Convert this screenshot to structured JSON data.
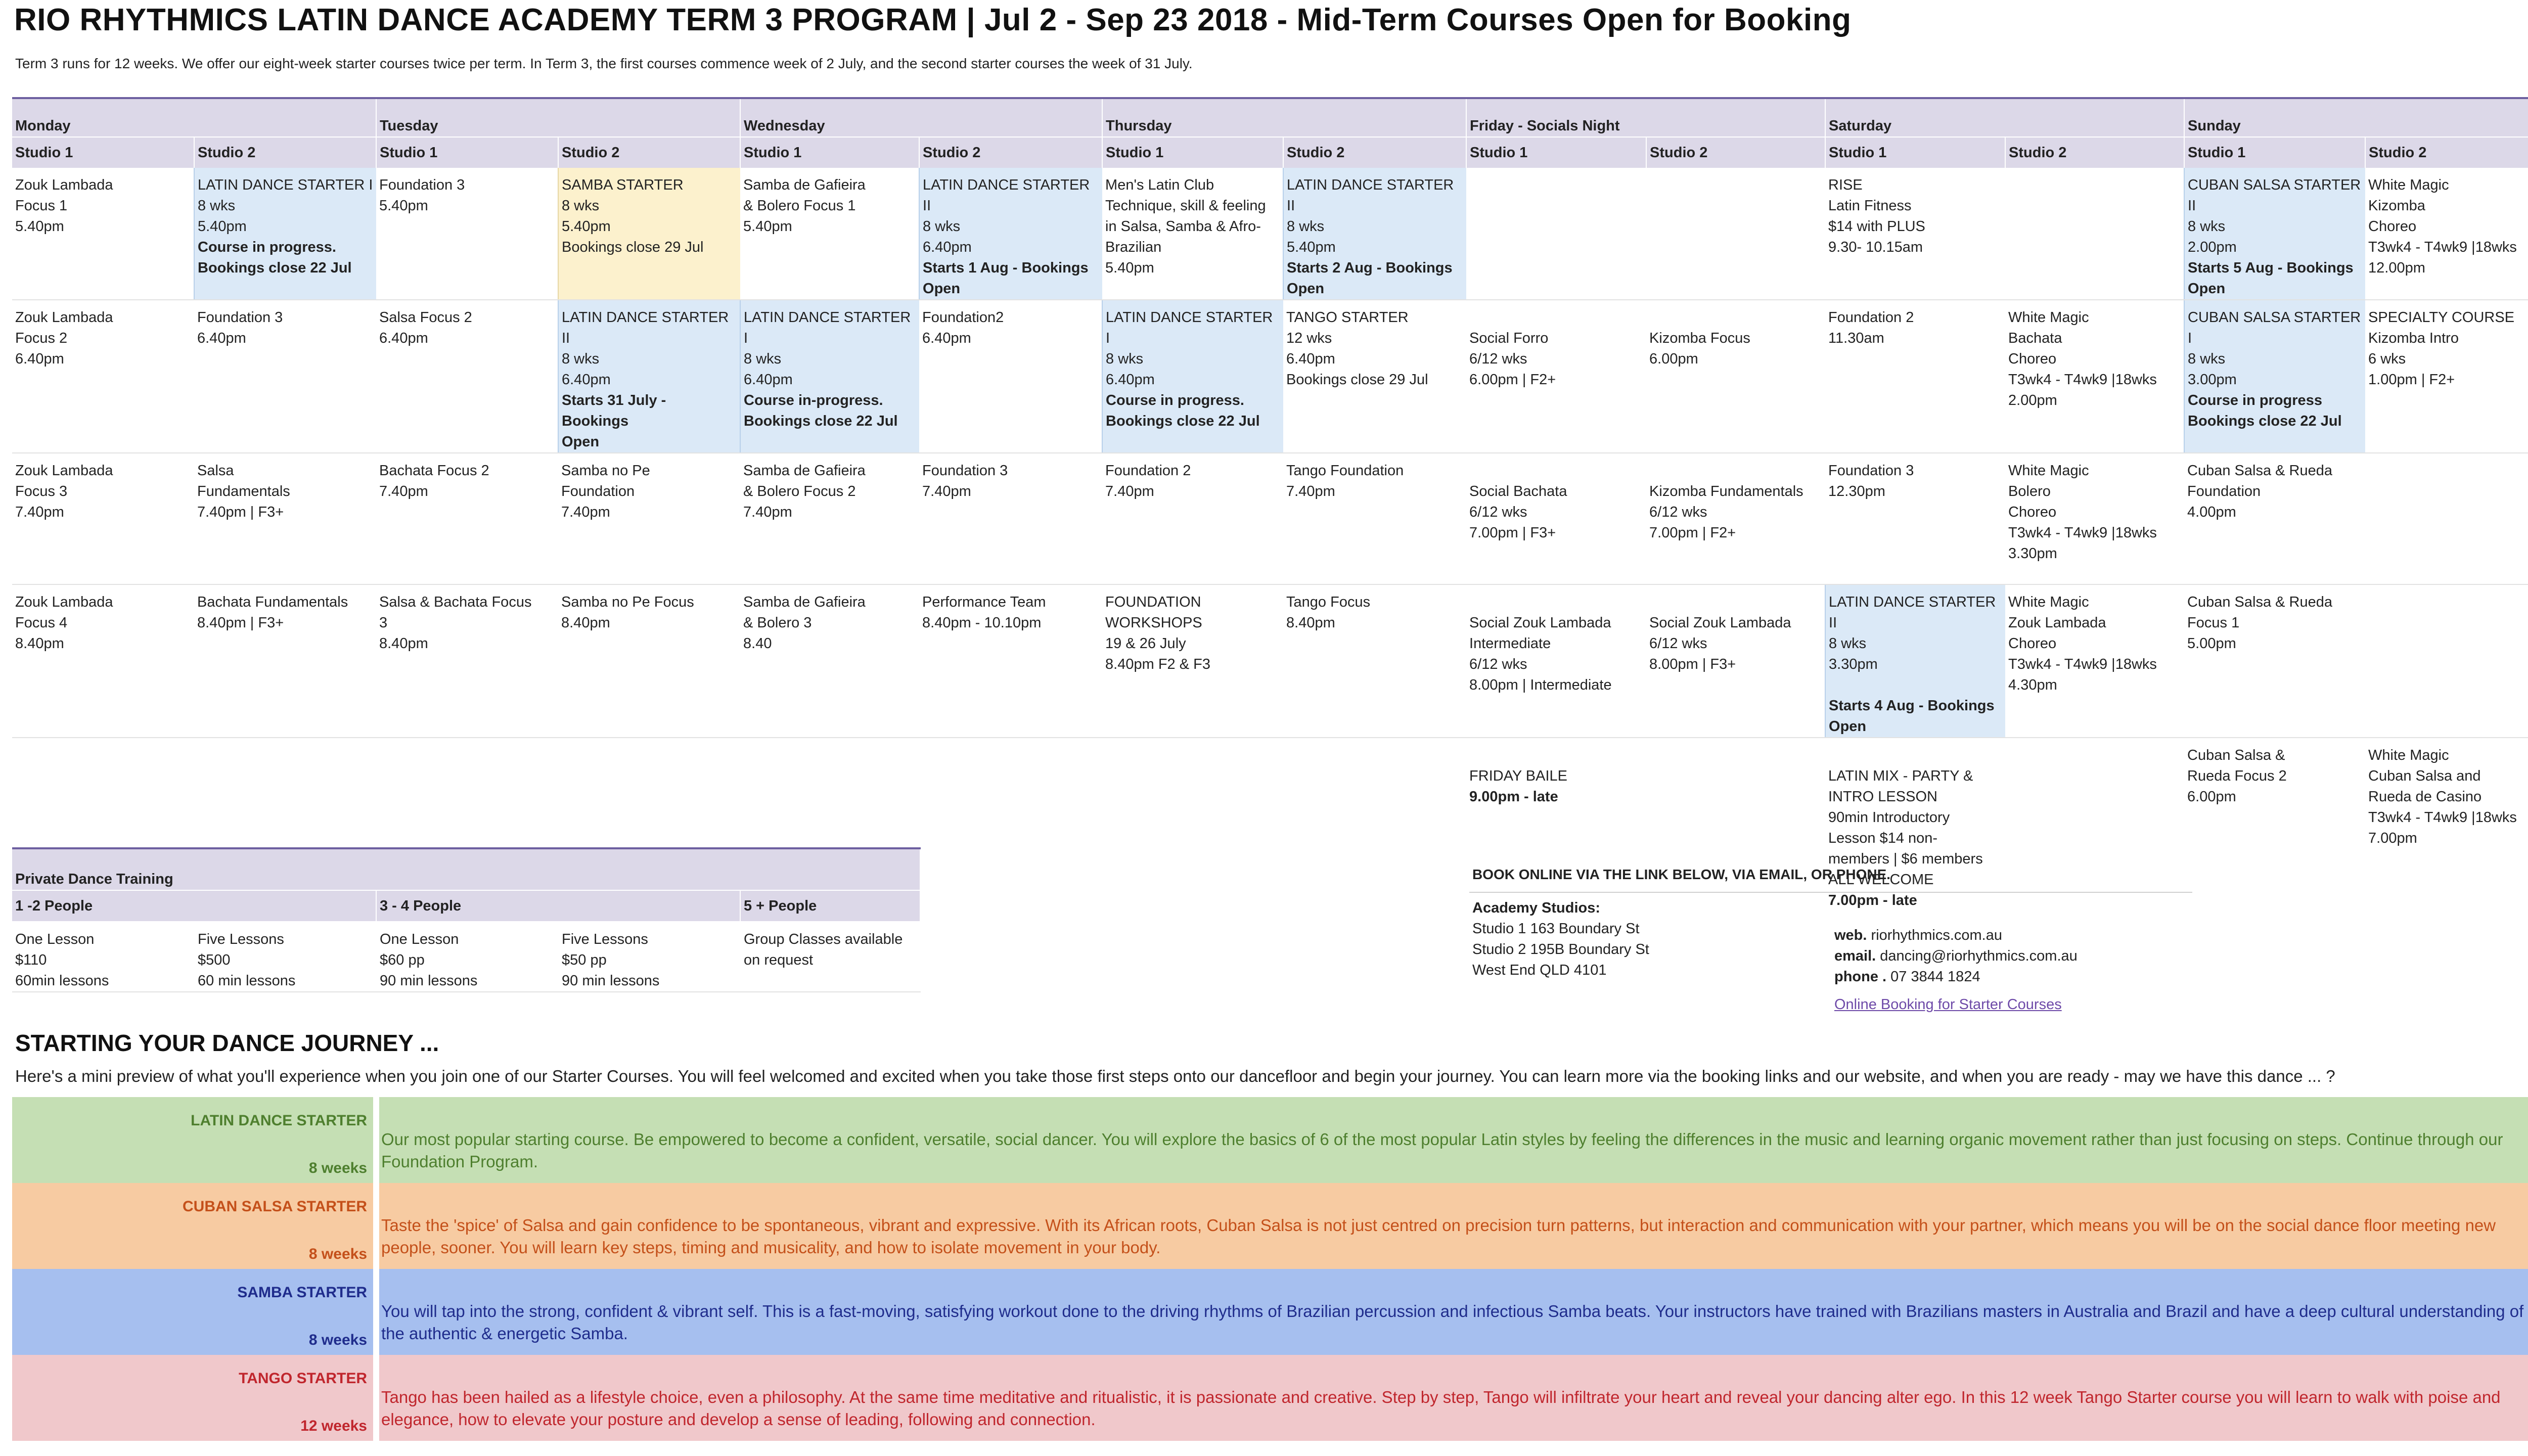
{
  "title": "RIO RHYTHMICS LATIN DANCE ACADEMY TERM 3 PROGRAM | Jul 2 - Sep 23 2018 - Mid-Term Courses Open for Booking",
  "intro": "Term 3 runs for 12 weeks. We offer our eight-week starter courses twice per term. In Term 3, the first courses commence week of 2 July, and the second starter courses the week of 31 July.",
  "colors": {
    "header_bg": "#dcd8e8",
    "starter_blue": "#dbe9f7",
    "samba_yellow": "#fcf1cd",
    "header_rule": "#6d5fa0"
  },
  "days": [
    "Monday",
    "Tuesday",
    "Wednesday",
    "Thursday",
    "Friday - Socials Night",
    "Saturday",
    "Sunday"
  ],
  "studio_labels": [
    "Studio 1",
    "Studio 2"
  ],
  "schedule": {
    "row1": [
      {
        "lines": [
          "Zouk Lambada",
          "Focus 1",
          "5.40pm"
        ],
        "bold": []
      },
      {
        "lines": [
          "LATIN DANCE STARTER I",
          "8 wks",
          "5.40pm",
          "Course in progress.",
          "Bookings close 22 Jul"
        ],
        "bold": [
          3,
          4
        ]
      },
      {
        "lines": [
          "Foundation 3",
          "5.40pm"
        ],
        "bold": []
      },
      {
        "lines": [
          "SAMBA STARTER",
          "8 wks",
          "5.40pm",
          "Bookings close 29 Jul"
        ],
        "bold": []
      },
      {
        "lines": [
          "Samba de Gafieira",
          "& Bolero Focus 1",
          "5.40pm"
        ],
        "bold": []
      },
      {
        "lines": [
          "LATIN DANCE STARTER II",
          "8 wks",
          "6.40pm",
          "Starts 1 Aug - Bookings",
          "Open"
        ],
        "bold": [
          3,
          4
        ]
      },
      {
        "lines": [
          "Men's Latin Club",
          "Technique, skill & feeling",
          "in Salsa, Samba & Afro-",
          "Brazilian",
          "5.40pm"
        ],
        "bold": []
      },
      {
        "lines": [
          "LATIN DANCE STARTER II",
          "8 wks",
          "5.40pm",
          "Starts 2 Aug - Bookings",
          "Open"
        ],
        "bold": [
          3,
          4
        ]
      },
      {
        "lines": [],
        "bold": []
      },
      {
        "lines": [],
        "bold": []
      },
      {
        "lines": [
          "RISE",
          "Latin Fitness",
          "$14 with PLUS",
          "9.30- 10.15am"
        ],
        "bold": []
      },
      {
        "lines": [],
        "bold": []
      },
      {
        "lines": [
          "CUBAN SALSA STARTER II",
          "8 wks",
          "2.00pm",
          "Starts 5 Aug - Bookings",
          "Open"
        ],
        "bold": [
          3,
          4
        ]
      },
      {
        "lines": [
          "White Magic",
          "Kizomba",
          "Choreo",
          "T3wk4 - T4wk9  |18wks",
          "12.00pm"
        ],
        "bold": []
      }
    ],
    "row2": [
      {
        "lines": [
          "Zouk Lambada",
          "Focus 2",
          "6.40pm"
        ],
        "bold": []
      },
      {
        "lines": [
          "Foundation 3",
          "6.40pm"
        ],
        "bold": []
      },
      {
        "lines": [
          "Salsa Focus 2",
          "6.40pm"
        ],
        "bold": []
      },
      {
        "lines": [
          "LATIN DANCE STARTER II",
          "8 wks",
          "6.40pm",
          "Starts 31 July - Bookings",
          "Open"
        ],
        "bold": [
          3,
          4
        ]
      },
      {
        "lines": [
          "LATIN DANCE STARTER I",
          "8 wks",
          "6.40pm",
          "Course in-progress.",
          "Bookings close 22 Jul"
        ],
        "bold": [
          3,
          4
        ]
      },
      {
        "lines": [
          "Foundation2",
          "6.40pm"
        ],
        "bold": []
      },
      {
        "lines": [
          "LATIN DANCE STARTER I",
          "8 wks",
          "6.40pm",
          "Course in progress.",
          "Bookings close 22 Jul"
        ],
        "bold": [
          3,
          4
        ]
      },
      {
        "lines": [
          "TANGO STARTER",
          "12 wks",
          "6.40pm",
          "Bookings close 29 Jul"
        ],
        "bold": []
      },
      {
        "lines": [
          "",
          "Social Forro",
          "6/12 wks",
          "6.00pm | F2+"
        ],
        "bold": []
      },
      {
        "lines": [
          "",
          "Kizomba Focus",
          "6.00pm"
        ],
        "bold": []
      },
      {
        "lines": [
          "Foundation 2",
          "11.30am"
        ],
        "bold": []
      },
      {
        "lines": [
          "White Magic",
          "Bachata",
          "Choreo",
          "T3wk4 - T4wk9  |18wks",
          "2.00pm"
        ],
        "bold": []
      },
      {
        "lines": [
          "CUBAN SALSA STARTER I",
          "8 wks",
          "3.00pm",
          "Course in progress",
          "Bookings close 22 Jul"
        ],
        "bold": [
          3,
          4
        ]
      },
      {
        "lines": [
          "SPECIALTY COURSE",
          "Kizomba Intro",
          "6 wks",
          "1.00pm | F2+"
        ],
        "bold": []
      }
    ],
    "row3": [
      {
        "lines": [
          "Zouk Lambada",
          "Focus 3",
          "7.40pm"
        ],
        "bold": []
      },
      {
        "lines": [
          "Salsa",
          "Fundamentals",
          "7.40pm | F3+"
        ],
        "bold": []
      },
      {
        "lines": [
          "Bachata Focus 2",
          "7.40pm"
        ],
        "bold": []
      },
      {
        "lines": [
          "Samba no Pe",
          "Foundation",
          "7.40pm"
        ],
        "bold": []
      },
      {
        "lines": [
          "Samba de Gafieira",
          "& Bolero Focus 2",
          "7.40pm"
        ],
        "bold": []
      },
      {
        "lines": [
          "Foundation 3",
          "7.40pm"
        ],
        "bold": []
      },
      {
        "lines": [
          "Foundation 2",
          "7.40pm"
        ],
        "bold": []
      },
      {
        "lines": [
          "Tango Foundation",
          "7.40pm"
        ],
        "bold": []
      },
      {
        "lines": [
          "",
          "Social Bachata",
          "6/12 wks",
          "7.00pm | F3+"
        ],
        "bold": []
      },
      {
        "lines": [
          "",
          "Kizomba Fundamentals",
          "6/12 wks",
          "7.00pm | F2+"
        ],
        "bold": []
      },
      {
        "lines": [
          "Foundation 3",
          "12.30pm"
        ],
        "bold": []
      },
      {
        "lines": [
          "White Magic",
          "Bolero",
          "Choreo",
          "T3wk4 - T4wk9  |18wks",
          "3.30pm"
        ],
        "bold": []
      },
      {
        "lines": [
          "Cuban Salsa & Rueda",
          "Foundation",
          "4.00pm"
        ],
        "bold": []
      },
      {
        "lines": [],
        "bold": []
      }
    ],
    "row4": [
      {
        "lines": [
          "Zouk Lambada",
          "Focus 4",
          "8.40pm"
        ],
        "bold": []
      },
      {
        "lines": [
          "Bachata Fundamentals",
          "8.40pm | F3+"
        ],
        "bold": []
      },
      {
        "lines": [
          "Salsa & Bachata Focus",
          "3",
          "8.40pm"
        ],
        "bold": []
      },
      {
        "lines": [
          "Samba no Pe Focus",
          "8.40pm"
        ],
        "bold": []
      },
      {
        "lines": [
          "Samba de Gafieira",
          " & Bolero 3",
          "8.40"
        ],
        "bold": []
      },
      {
        "lines": [
          "Performance Team",
          "8.40pm - 10.10pm"
        ],
        "bold": []
      },
      {
        "lines": [
          "FOUNDATION",
          "WORKSHOPS",
          "19 & 26 July",
          "8.40pm F2 & F3"
        ],
        "bold": []
      },
      {
        "lines": [
          "Tango Focus",
          "8.40pm"
        ],
        "bold": []
      },
      {
        "lines": [
          "",
          "Social Zouk Lambada",
          "Intermediate",
          "6/12 wks",
          "8.00pm | Intermediate"
        ],
        "bold": []
      },
      {
        "lines": [
          "",
          "Social Zouk Lambada",
          "6/12 wks",
          "8.00pm | F3+"
        ],
        "bold": []
      },
      {
        "lines": [
          "LATIN DANCE STARTER II",
          "8 wks",
          "3.30pm",
          "",
          "Starts 4 Aug - Bookings",
          "Open"
        ],
        "bold": [
          4,
          5
        ]
      },
      {
        "lines": [
          "White Magic",
          "Zouk Lambada",
          "Choreo",
          "T3wk4 - T4wk9  |18wks",
          "4.30pm"
        ],
        "bold": []
      },
      {
        "lines": [
          "Cuban Salsa & Rueda",
          "Focus 1",
          "5.00pm"
        ],
        "bold": []
      },
      {
        "lines": [],
        "bold": []
      }
    ],
    "row5": [
      {
        "lines": [],
        "bold": []
      },
      {
        "lines": [],
        "bold": []
      },
      {
        "lines": [],
        "bold": []
      },
      {
        "lines": [],
        "bold": []
      },
      {
        "lines": [],
        "bold": []
      },
      {
        "lines": [],
        "bold": []
      },
      {
        "lines": [],
        "bold": []
      },
      {
        "lines": [],
        "bold": []
      },
      {
        "lines": [
          "",
          "FRIDAY BAILE",
          "9.00pm - late"
        ],
        "bold": [
          2
        ]
      },
      {
        "lines": [],
        "bold": []
      },
      {
        "lines": [
          "",
          "LATIN MIX - PARTY &",
          "INTRO LESSON",
          "90min Introductory",
          "Lesson $14 non-",
          "members | $6 members",
          "ALL WELCOME",
          "7.00pm - late"
        ],
        "bold": [
          7
        ]
      },
      {
        "lines": [],
        "bold": []
      },
      {
        "lines": [
          "Cuban Salsa &",
          "Rueda Focus 2",
          "6.00pm"
        ],
        "bold": []
      },
      {
        "lines": [
          "White Magic",
          "Cuban Salsa and",
          "Rueda de Casino",
          "T3wk4 - T4wk9  |18wks",
          "7.00pm"
        ],
        "bold": []
      }
    ]
  },
  "private": {
    "title": "Private Dance Training",
    "groups": [
      "1 -2 People",
      "3 - 4 People",
      "5 + People"
    ],
    "cells": [
      [
        "One Lesson",
        "$110",
        "60min lessons"
      ],
      [
        "Five Lessons",
        "$500",
        "60 min lessons"
      ],
      [
        "One Lesson",
        "$60 pp",
        "90 min lessons"
      ],
      [
        "Five Lessons",
        "$50 pp",
        "90 min lessons"
      ],
      [
        "Group Classes available",
        "on request"
      ]
    ]
  },
  "booking": {
    "heading": "BOOK ONLINE VIA THE LINK BELOW, VIA EMAIL, OR PHONE.",
    "studios_label": "Academy Studios:",
    "address": [
      "Studio 1 163 Boundary St",
      "Studio 2 195B Boundary St",
      "West End  QLD 4101"
    ],
    "web_label": "web.",
    "web": "riorhythmics.com.au",
    "email_label": "email.",
    "email": "dancing@riorhythmics.com.au",
    "phone_label": "phone .",
    "phone": "07 3844 1824",
    "link": "Online Booking for Starter Courses"
  },
  "journey": {
    "title": "STARTING YOUR DANCE JOURNEY ...",
    "intro": "Here's a mini preview of what you'll experience when you join one of our Starter Courses. You will feel welcomed and excited when you take those first steps onto our dancefloor and begin your journey. You can learn more via the booking links and our website, and when you are ready - may we have this dance ... ?",
    "courses": [
      {
        "name": "LATIN DANCE STARTER",
        "weeks": "8 weeks",
        "bg": "#c5dfb4",
        "fg": "#4e7f2e",
        "desc": "Our most popular starting course. Be empowered to become a confident, versatile, social dancer. You will explore the basics of 6 of the most popular Latin styles by feeling the differences in the music and learning organic movement rather than just focusing on steps. Continue through our Foundation Program."
      },
      {
        "name": "CUBAN SALSA STARTER",
        "weeks": "8 weeks",
        "bg": "#f7cba2",
        "fg": "#c4501a",
        "desc": "Taste the 'spice' of Salsa and gain confidence to be spontaneous, vibrant and expressive. With its African roots, Cuban Salsa is not just centred on precision turn patterns, but interaction and communication with your partner, which means you will be on the social dance floor meeting new people, sooner.  You will learn key steps, timing and musicality, and how to isolate movement in your body."
      },
      {
        "name": "SAMBA STARTER",
        "weeks": "8 weeks",
        "bg": "#a6bfef",
        "fg": "#1f2c8c",
        "desc": "You will tap into the strong, confident & vibrant self. This is a fast-moving, satisfying workout done to the driving rhythms of Brazilian percussion and infectious Samba beats. Your instructors have trained with Brazilians masters in Australia and Brazil and have a deep cultural understanding of the authentic & energetic Samba."
      },
      {
        "name": "TANGO STARTER",
        "weeks": "12 weeks",
        "bg": "#f0c8cb",
        "fg": "#c0262d",
        "desc": "Tango has been hailed as a lifestyle choice, even a philosophy. At the same time meditative and ritualistic, it is passionate and creative. Step by step, Tango will infiltrate your heart and reveal your dancing alter ego. In this 12 week Tango Starter course you will learn to walk with poise and elegance, how to elevate your posture and develop a sense of leading, following and connection."
      }
    ]
  }
}
